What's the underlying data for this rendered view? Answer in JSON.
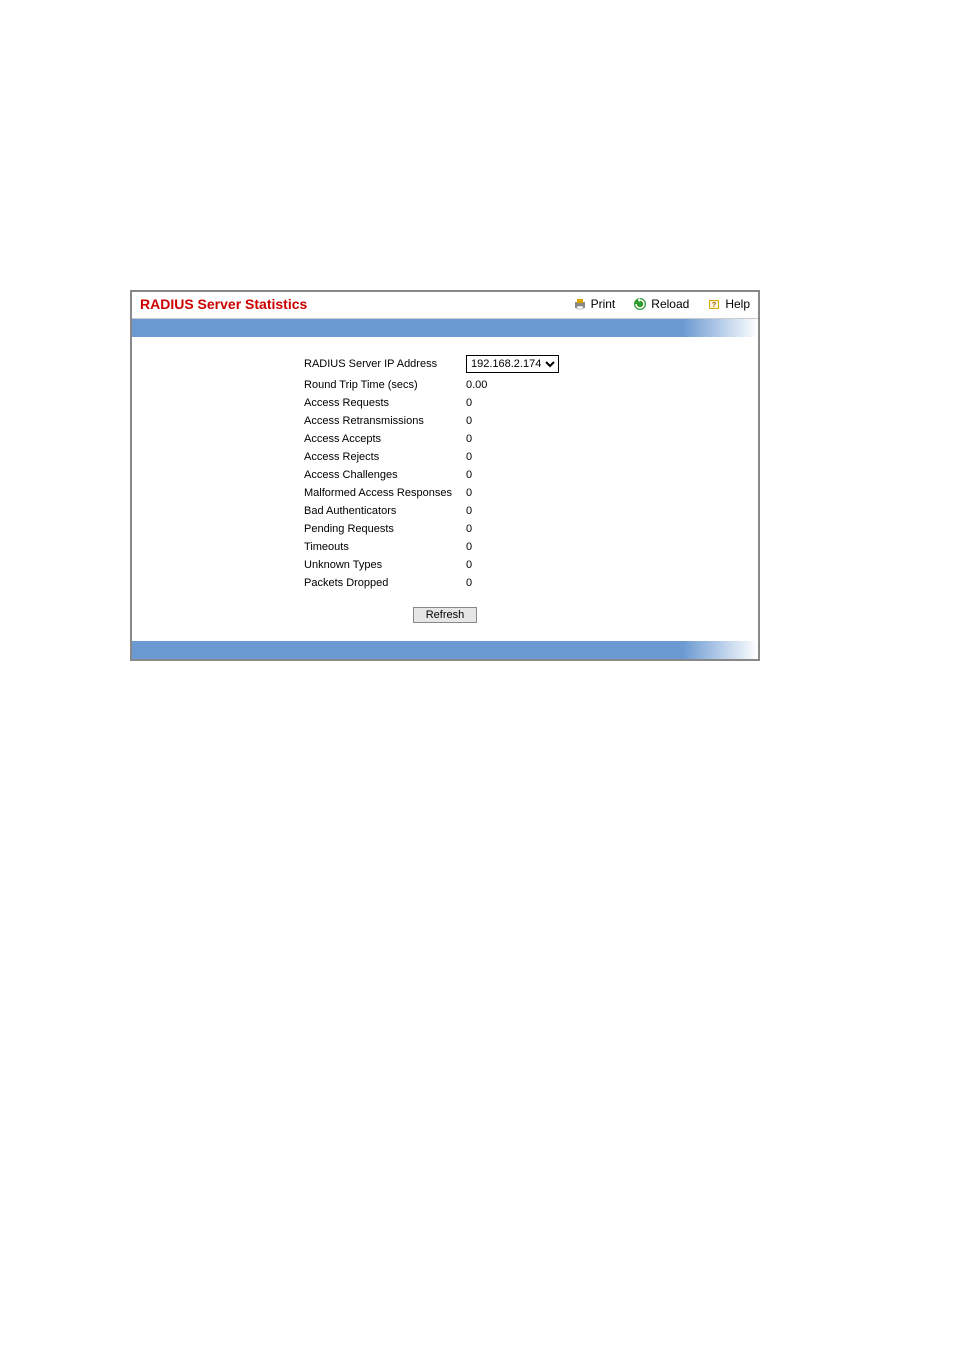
{
  "header": {
    "title": "RADIUS Server Statistics",
    "print_label": "Print",
    "reload_label": "Reload",
    "help_label": "Help",
    "title_color": "#cc0000",
    "bar_color": "#6b9ad2"
  },
  "stats": {
    "ip_label": "RADIUS Server IP Address",
    "ip_selected": "192.168.2.174",
    "rows": [
      {
        "label": "Round Trip Time (secs)",
        "value": "0.00"
      },
      {
        "label": "Access Requests",
        "value": "0"
      },
      {
        "label": "Access Retransmissions",
        "value": "0"
      },
      {
        "label": "Access Accepts",
        "value": "0"
      },
      {
        "label": "Access Rejects",
        "value": "0"
      },
      {
        "label": "Access Challenges",
        "value": "0"
      },
      {
        "label": "Malformed Access Responses",
        "value": "0"
      },
      {
        "label": "Bad Authenticators",
        "value": "0"
      },
      {
        "label": "Pending Requests",
        "value": "0"
      },
      {
        "label": "Timeouts",
        "value": "0"
      },
      {
        "label": "Unknown Types",
        "value": "0"
      },
      {
        "label": "Packets Dropped",
        "value": "0"
      }
    ]
  },
  "buttons": {
    "refresh": "Refresh"
  },
  "icons": {
    "print_color": "#d9a300",
    "reload_color": "#2e9b2e",
    "help_color": "#d9a300"
  }
}
